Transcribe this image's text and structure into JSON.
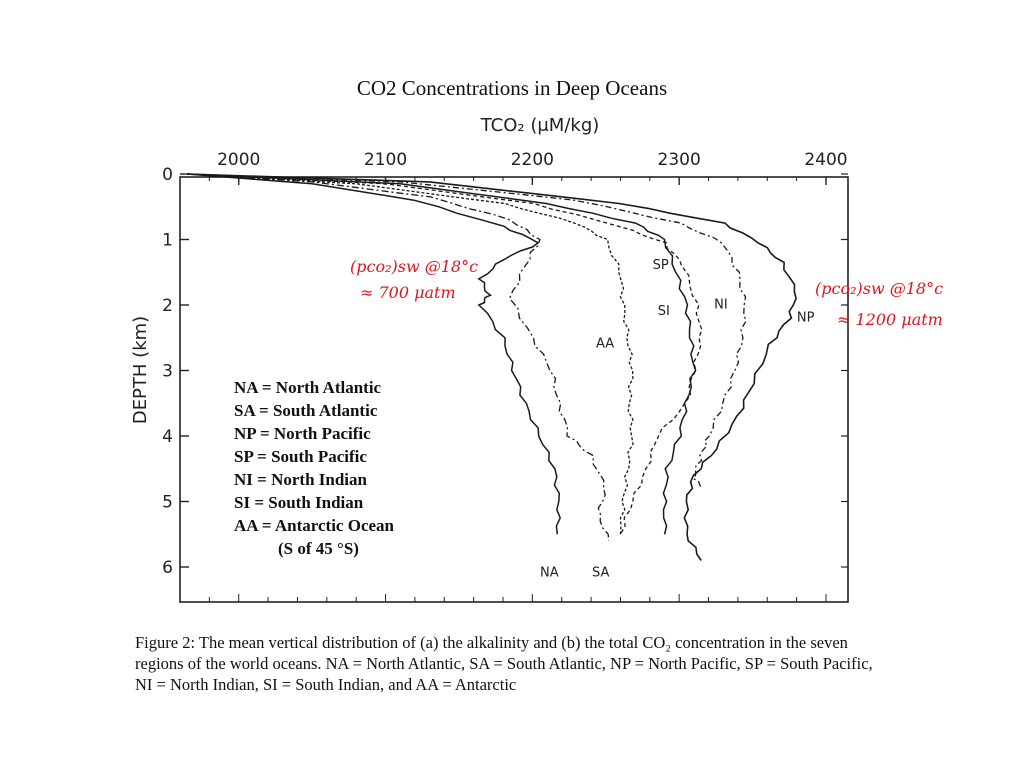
{
  "slide_title": "CO2 Concentrations in Deep Oceans",
  "caption": "Figure 2: The mean vertical distribution of (a) the alkalinity and (b) the total CO₂ concentration in the seven regions of the world oceans. NA = North Atlantic, SA = South Atlantic, NP = North Pacific, SP = South Pacific, NI = North Indian, SI = South Indian, and AA = Antarctic",
  "legend": [
    "NA  = North Atlantic",
    "SA  = South Atlantic",
    "NP  = North Pacific",
    "SP   = South Pacific",
    "NI   = North Indian",
    "SI    = South Indian",
    "AA = Antarctic Ocean",
    "(S of 45 °S)"
  ],
  "annotations": {
    "left_line1": "(pco₂)sw @18°c",
    "left_line2": "≈ 700 μatm",
    "right_line1": "(pco₂)sw @18°c",
    "right_line2": "≈ 1200 μatm",
    "color": "#e0141b"
  },
  "chart_data": {
    "type": "line",
    "xlabel": "TCO₂ (μM/kg)",
    "ylabel": "DEPTH (km)",
    "x_ticks": [
      2000,
      2100,
      2200,
      2300,
      2400
    ],
    "y_ticks": [
      0,
      1,
      2,
      3,
      4,
      5,
      6
    ],
    "xlim": [
      1960,
      2415
    ],
    "ylim": [
      0,
      6.5
    ],
    "x_axis_position": "top",
    "series": [
      {
        "name": "NA",
        "points": [
          [
            1965,
            0
          ],
          [
            2050,
            0.15
          ],
          [
            2120,
            0.4
          ],
          [
            2180,
            0.8
          ],
          [
            2205,
            1.05
          ],
          [
            2180,
            1.3
          ],
          [
            2165,
            1.6
          ],
          [
            2170,
            1.85
          ],
          [
            2165,
            2.0
          ],
          [
            2180,
            2.5
          ],
          [
            2187,
            3.0
          ],
          [
            2195,
            3.5
          ],
          [
            2205,
            4.0
          ],
          [
            2215,
            4.5
          ],
          [
            2218,
            5.0
          ],
          [
            2217,
            5.5
          ]
        ],
        "label_y": 5.9
      },
      {
        "name": "SA",
        "points": [
          [
            1965,
            0
          ],
          [
            2050,
            0.12
          ],
          [
            2130,
            0.35
          ],
          [
            2185,
            0.7
          ],
          [
            2205,
            1.0
          ],
          [
            2195,
            1.4
          ],
          [
            2185,
            1.9
          ],
          [
            2200,
            2.5
          ],
          [
            2213,
            3.0
          ],
          [
            2218,
            3.5
          ],
          [
            2225,
            4.0
          ],
          [
            2240,
            4.3
          ],
          [
            2250,
            4.8
          ],
          [
            2245,
            5.2
          ],
          [
            2252,
            5.6
          ]
        ],
        "label_y": 5.9
      },
      {
        "name": "AA",
        "points": [
          [
            1965,
            0
          ],
          [
            2080,
            0.15
          ],
          [
            2180,
            0.45
          ],
          [
            2230,
            0.75
          ],
          [
            2250,
            1.0
          ],
          [
            2260,
            1.5
          ],
          [
            2262,
            2.0
          ],
          [
            2265,
            2.5
          ],
          [
            2268,
            3.0
          ],
          [
            2266,
            3.5
          ],
          [
            2268,
            4.0
          ],
          [
            2265,
            4.5
          ],
          [
            2262,
            5.0
          ],
          [
            2260,
            5.5
          ]
        ],
        "label_y": 2.65
      },
      {
        "name": "SP",
        "points": [
          [
            1965,
            0
          ],
          [
            2100,
            0.15
          ],
          [
            2200,
            0.45
          ],
          [
            2260,
            0.8
          ],
          [
            2290,
            1.05
          ],
          [
            2303,
            1.4
          ],
          [
            2312,
            2.0
          ],
          [
            2315,
            2.5
          ],
          [
            2310,
            3.0
          ],
          [
            2305,
            3.5
          ],
          [
            2285,
            4.0
          ],
          [
            2278,
            4.5
          ],
          [
            2268,
            5.0
          ],
          [
            2260,
            5.5
          ]
        ],
        "label_y": 1.45
      },
      {
        "name": "SI",
        "points": [
          [
            1965,
            0
          ],
          [
            2110,
            0.15
          ],
          [
            2210,
            0.45
          ],
          [
            2270,
            0.75
          ],
          [
            2290,
            1.0
          ],
          [
            2298,
            1.5
          ],
          [
            2305,
            2.0
          ],
          [
            2308,
            2.5
          ],
          [
            2310,
            3.0
          ],
          [
            2305,
            3.5
          ],
          [
            2300,
            4.0
          ],
          [
            2292,
            4.5
          ],
          [
            2290,
            5.0
          ],
          [
            2290,
            5.5
          ]
        ],
        "label_y": 2.15
      },
      {
        "name": "NI",
        "points": [
          [
            1965,
            0
          ],
          [
            2110,
            0.12
          ],
          [
            2230,
            0.4
          ],
          [
            2300,
            0.75
          ],
          [
            2330,
            1.05
          ],
          [
            2340,
            1.5
          ],
          [
            2345,
            2.0
          ],
          [
            2343,
            2.5
          ],
          [
            2338,
            3.0
          ],
          [
            2330,
            3.5
          ],
          [
            2320,
            4.0
          ],
          [
            2315,
            4.3
          ],
          [
            2310,
            4.6
          ],
          [
            2315,
            4.8
          ]
        ],
        "label_y": 2.05
      },
      {
        "name": "NP",
        "points": [
          [
            1965,
            0
          ],
          [
            2130,
            0.12
          ],
          [
            2260,
            0.45
          ],
          [
            2330,
            0.75
          ],
          [
            2355,
            1.05
          ],
          [
            2370,
            1.35
          ],
          [
            2380,
            1.8
          ],
          [
            2375,
            2.2
          ],
          [
            2362,
            2.6
          ],
          [
            2350,
            3.2
          ],
          [
            2340,
            3.7
          ],
          [
            2325,
            4.2
          ],
          [
            2310,
            4.6
          ],
          [
            2305,
            5.0
          ],
          [
            2305,
            5.5
          ],
          [
            2315,
            5.9
          ]
        ],
        "label_y": 2.25
      }
    ]
  }
}
